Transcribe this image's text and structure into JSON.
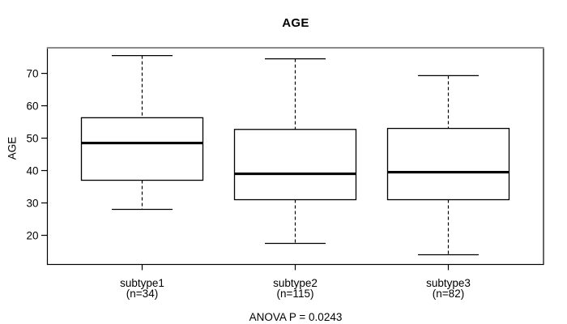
{
  "chart_data": {
    "type": "boxplot",
    "title": "AGE",
    "xlabel": "",
    "ylabel": "AGE",
    "annotation": "ANOVA P = 0.0243",
    "ylim": [
      11,
      77.9
    ],
    "yticks": [
      20,
      30,
      40,
      50,
      60,
      70
    ],
    "grid": false,
    "whisker_line_style": "dashed",
    "groups": [
      {
        "label": "subtype1",
        "n_label": "(n=34)",
        "n": 34,
        "whisker_low": 28,
        "q1": 37,
        "median": 48.5,
        "q3": 56.3,
        "whisker_high": 75.5
      },
      {
        "label": "subtype2",
        "n_label": "(n=115)",
        "n": 115,
        "whisker_low": 17.5,
        "q1": 31,
        "median": 39,
        "q3": 52.7,
        "whisker_high": 74.5
      },
      {
        "label": "subtype3",
        "n_label": "(n=82)",
        "n": 82,
        "whisker_low": 14,
        "q1": 31,
        "median": 39.5,
        "q3": 53,
        "whisker_high": 69.3
      }
    ],
    "colors": {
      "box_fill": "#ffffff",
      "box_stroke": "#000000",
      "median": "#000000",
      "frame_top": "#8a8a8a",
      "frame": "#000000",
      "text": "#000000",
      "background": "#ffffff"
    }
  }
}
